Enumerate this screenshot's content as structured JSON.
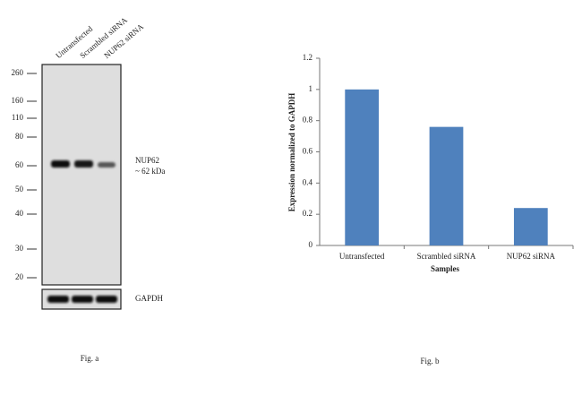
{
  "western_blot": {
    "lanes": [
      "Untransfected",
      "Scrambled siRNA",
      "NUP62 siRNA"
    ],
    "markers": [
      260,
      160,
      110,
      80,
      60,
      50,
      40,
      30,
      20
    ],
    "target_label": "NUP62",
    "target_size": "~ 62 kDa",
    "control_label": "GAPDH",
    "caption": "Fig. a"
  },
  "chart_data": {
    "type": "bar",
    "x_label": "Samples",
    "y_label": "Expression normalized to GAPDH",
    "categories": [
      "Untransfected",
      "Scrambled siRNA",
      "NUP62 siRNA"
    ],
    "values": [
      1,
      0.76,
      0.24
    ],
    "color": "#4f81bd",
    "ylim": [
      0,
      1.2
    ],
    "yticks": [
      0,
      0.2,
      0.4,
      0.6,
      0.8,
      1,
      1.2
    ],
    "caption": "Fig. b"
  }
}
